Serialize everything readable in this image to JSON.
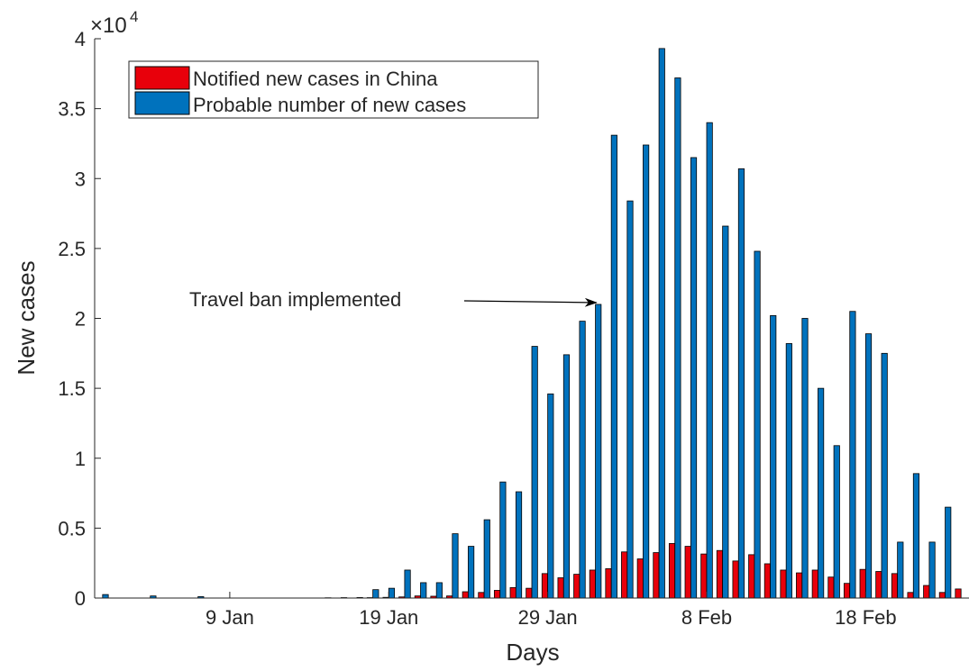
{
  "chart_data": {
    "type": "bar",
    "xlabel": "Days",
    "ylabel": "New cases",
    "y_exponent_label": "×10",
    "y_exponent_power": "4",
    "ylim": [
      0,
      40000
    ],
    "yticks": [
      0,
      5000,
      10000,
      15000,
      20000,
      25000,
      30000,
      35000,
      40000
    ],
    "ytick_labels": [
      "0",
      "0.5",
      "1",
      "1.5",
      "2",
      "2.5",
      "3",
      "3.5",
      "4"
    ],
    "xtick_labels": [
      "9 Jan",
      "19 Jan",
      "29 Jan",
      "8 Feb",
      "18 Feb"
    ],
    "xtick_index": [
      8,
      18,
      28,
      38,
      48
    ],
    "colors": {
      "notified": "#e8000b",
      "probable": "#0072bd"
    },
    "legend_position": "top-left",
    "series": [
      {
        "name": "Notified new cases in China",
        "values": [
          0,
          0,
          0,
          0,
          0,
          0,
          0,
          0,
          0,
          0,
          0,
          0,
          0,
          0,
          0,
          0,
          0,
          30,
          50,
          80,
          150,
          130,
          150,
          450,
          400,
          550,
          750,
          700,
          1750,
          1450,
          1700,
          2000,
          2100,
          3300,
          2800,
          3250,
          3900,
          3700,
          3150,
          3400,
          2650,
          3100,
          2450,
          2000,
          1800,
          2000,
          1500,
          1050,
          2050,
          1900,
          1750,
          400,
          900,
          400,
          650
        ]
      },
      {
        "name": "Probable number of new cases",
        "values": [
          250,
          0,
          0,
          150,
          0,
          0,
          100,
          0,
          0,
          0,
          0,
          0,
          0,
          0,
          20,
          30,
          40,
          600,
          700,
          2000,
          1100,
          1100,
          4600,
          3700,
          5600,
          8300,
          7600,
          18000,
          14600,
          17400,
          19800,
          21000,
          33100,
          28400,
          32400,
          39300,
          37200,
          31500,
          34000,
          26600,
          30700,
          24800,
          20200,
          18200,
          20000,
          15000,
          10900,
          20500,
          18900,
          17500,
          4000,
          8900,
          4000,
          6500,
          0
        ]
      }
    ],
    "annotation": {
      "text": "Travel ban implemented",
      "target_index": 31,
      "target_value": 21000
    }
  }
}
